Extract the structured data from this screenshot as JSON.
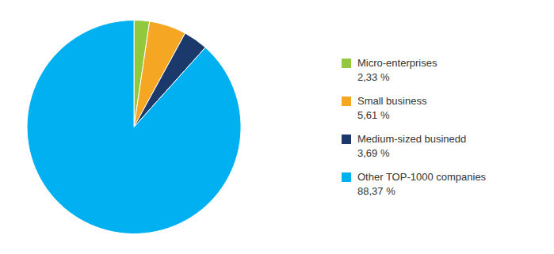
{
  "chart_data": {
    "type": "pie",
    "categories": [
      "Micro-enterprises",
      "Small business",
      "Medium-sized businedd",
      "Other TOP-1000 companies"
    ],
    "values": [
      2.33,
      5.61,
      3.69,
      88.37
    ],
    "value_labels": [
      "2,33 %",
      "5,61 %",
      "3,69 %",
      "88,37 %"
    ],
    "colors": [
      "#92c83e",
      "#f5a623",
      "#1b3a6b",
      "#00b0f0"
    ]
  }
}
